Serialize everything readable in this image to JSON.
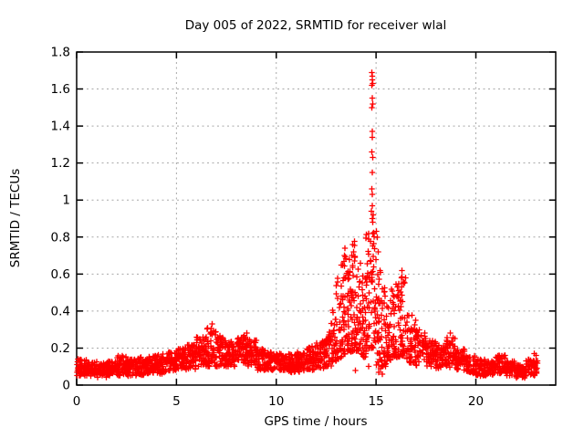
{
  "window": {
    "background": "#ffffff",
    "frame_color": "#000000",
    "grid_color": "#a8a8a8"
  },
  "chart_data": {
    "type": "scatter",
    "title": "Day 005 of 2022, SRMTID for receiver wlal",
    "xlabel": "GPS time / hours",
    "ylabel": "SRMTID / TECUs",
    "xlim": [
      0,
      24
    ],
    "ylim": [
      0,
      1.8
    ],
    "xtick_values": [
      0,
      5,
      10,
      15,
      20
    ],
    "xtick_labels": [
      "0",
      "5",
      "10",
      "15",
      "20"
    ],
    "ytick_values": [
      0,
      0.2,
      0.4,
      0.6,
      0.8,
      1,
      1.2,
      1.4,
      1.6,
      1.8
    ],
    "ytick_labels": [
      "0",
      "0.2",
      "0.4",
      "0.6",
      "0.8",
      "1",
      "1.2",
      "1.4",
      "1.6",
      "1.8"
    ],
    "grid": true,
    "legend": "none",
    "marker": "plus",
    "marker_color": "#ff0000",
    "peak": {
      "x": 14.8,
      "y": 1.69
    },
    "data_start_hour": 0,
    "data_end_hour": 23.1,
    "band_format": "[x_start, x_end, y_low, y_high, n_points]",
    "density_bands": [
      [
        0,
        0.5,
        0.05,
        0.14,
        55
      ],
      [
        0.5,
        1,
        0.05,
        0.13,
        55
      ],
      [
        1,
        1.5,
        0.04,
        0.12,
        55
      ],
      [
        1.5,
        2,
        0.05,
        0.13,
        55
      ],
      [
        2,
        2.5,
        0.05,
        0.16,
        55
      ],
      [
        2.5,
        3,
        0.05,
        0.14,
        55
      ],
      [
        3,
        3.5,
        0.05,
        0.15,
        55
      ],
      [
        3.5,
        4,
        0.06,
        0.16,
        55
      ],
      [
        4,
        4.5,
        0.06,
        0.17,
        55
      ],
      [
        4.5,
        5,
        0.07,
        0.18,
        55
      ],
      [
        5,
        5.5,
        0.08,
        0.2,
        55
      ],
      [
        5.5,
        6,
        0.08,
        0.22,
        55
      ],
      [
        6,
        6.5,
        0.1,
        0.26,
        56
      ],
      [
        6.5,
        7,
        0.1,
        0.31,
        56
      ],
      [
        7,
        7.5,
        0.1,
        0.27,
        56
      ],
      [
        7.5,
        8,
        0.1,
        0.24,
        55
      ],
      [
        8,
        8.5,
        0.1,
        0.27,
        55
      ],
      [
        8.5,
        9,
        0.1,
        0.25,
        55
      ],
      [
        9,
        9.5,
        0.08,
        0.2,
        55
      ],
      [
        9.5,
        10,
        0.08,
        0.18,
        55
      ],
      [
        10,
        10.5,
        0.08,
        0.17,
        55
      ],
      [
        10.5,
        11,
        0.07,
        0.17,
        55
      ],
      [
        11,
        11.5,
        0.07,
        0.18,
        55
      ],
      [
        11.5,
        12,
        0.08,
        0.21,
        55
      ],
      [
        12,
        12.5,
        0.09,
        0.24,
        55
      ],
      [
        12.5,
        12.75,
        0.1,
        0.3,
        28
      ],
      [
        12.75,
        13,
        0.12,
        0.42,
        28
      ],
      [
        13,
        13.25,
        0.13,
        0.58,
        32
      ],
      [
        13.25,
        13.5,
        0.15,
        0.72,
        34
      ],
      [
        13.5,
        13.75,
        0.18,
        0.72,
        36
      ],
      [
        13.75,
        14,
        0.18,
        0.78,
        36
      ],
      [
        14,
        14.25,
        0.18,
        0.68,
        34
      ],
      [
        14.25,
        14.5,
        0.15,
        0.6,
        34
      ],
      [
        14.5,
        14.75,
        0.2,
        0.82,
        36
      ],
      [
        14.75,
        15,
        0.2,
        0.85,
        36
      ],
      [
        15,
        15.25,
        0.1,
        0.62,
        32
      ],
      [
        15.25,
        15.5,
        0.1,
        0.55,
        32
      ],
      [
        15.5,
        15.75,
        0.12,
        0.46,
        30
      ],
      [
        15.75,
        16,
        0.15,
        0.52,
        30
      ],
      [
        16,
        16.25,
        0.15,
        0.55,
        30
      ],
      [
        16.25,
        16.5,
        0.15,
        0.62,
        30
      ],
      [
        16.5,
        17,
        0.12,
        0.38,
        50
      ],
      [
        17,
        17.5,
        0.1,
        0.3,
        48
      ],
      [
        17.5,
        18,
        0.1,
        0.24,
        50
      ],
      [
        18,
        18.5,
        0.09,
        0.22,
        50
      ],
      [
        18.5,
        19,
        0.09,
        0.26,
        50
      ],
      [
        19,
        19.5,
        0.08,
        0.2,
        50
      ],
      [
        19.5,
        20,
        0.06,
        0.16,
        50
      ],
      [
        20,
        20.5,
        0.05,
        0.14,
        50
      ],
      [
        20.5,
        21,
        0.05,
        0.13,
        50
      ],
      [
        21,
        21.5,
        0.06,
        0.16,
        50
      ],
      [
        21.5,
        22,
        0.05,
        0.13,
        50
      ],
      [
        22,
        22.5,
        0.04,
        0.11,
        50
      ],
      [
        22.5,
        23.1,
        0.05,
        0.14,
        58
      ]
    ],
    "outlier_points": [
      [
        14.78,
        1.69
      ],
      [
        14.82,
        1.67
      ],
      [
        14.8,
        1.65
      ],
      [
        14.84,
        1.63
      ],
      [
        14.79,
        1.62
      ],
      [
        14.81,
        1.55
      ],
      [
        14.83,
        1.52
      ],
      [
        14.79,
        1.5
      ],
      [
        14.82,
        1.37
      ],
      [
        14.8,
        1.34
      ],
      [
        14.78,
        1.26
      ],
      [
        14.83,
        1.23
      ],
      [
        14.8,
        1.15
      ],
      [
        14.79,
        1.06
      ],
      [
        14.82,
        1.03
      ],
      [
        14.8,
        0.97
      ],
      [
        14.77,
        0.94
      ],
      [
        14.85,
        0.92
      ],
      [
        14.81,
        0.9
      ],
      [
        14.83,
        0.88
      ],
      [
        15.02,
        0.83
      ],
      [
        15.06,
        0.8
      ],
      [
        15.1,
        0.72
      ],
      [
        13.82,
        0.76
      ],
      [
        13.88,
        0.72
      ],
      [
        13.78,
        0.7
      ],
      [
        13.92,
        0.67
      ],
      [
        13.45,
        0.74
      ],
      [
        13.42,
        0.7
      ],
      [
        16.3,
        0.62
      ],
      [
        16.27,
        0.58
      ],
      [
        16.36,
        0.55
      ],
      [
        15.12,
        0.07
      ],
      [
        15.22,
        0.09
      ],
      [
        15.32,
        0.06
      ],
      [
        13.96,
        0.08
      ],
      [
        14.62,
        0.1
      ],
      [
        22.92,
        0.17
      ],
      [
        23.02,
        0.16
      ],
      [
        6.78,
        0.33
      ],
      [
        8.52,
        0.28
      ],
      [
        18.72,
        0.28
      ]
    ]
  }
}
